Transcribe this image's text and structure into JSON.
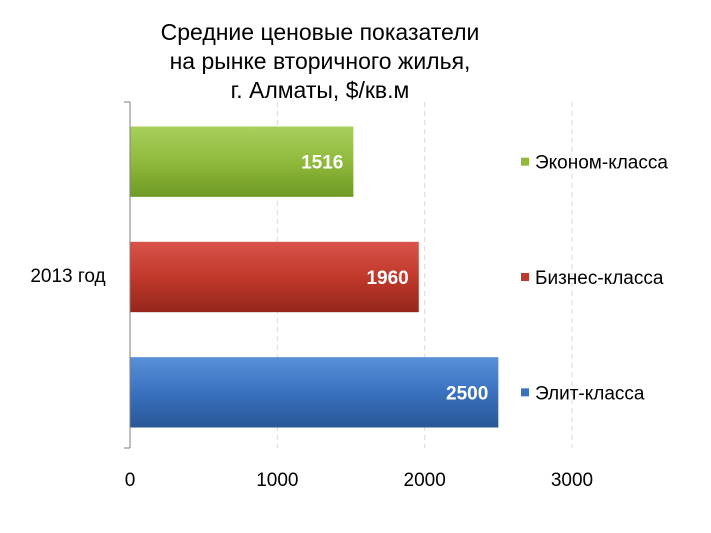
{
  "chart_data": {
    "type": "bar",
    "orientation": "horizontal",
    "title_lines": [
      "Средние ценовые показатели",
      "на рынке вторичного жилья,",
      "г. Алматы, $/кв.м"
    ],
    "categories": [
      "2013 год"
    ],
    "series": [
      {
        "name": "Эконом-класса",
        "values": [
          1516
        ],
        "color": "#8fba3c"
      },
      {
        "name": "Бизнес-класса",
        "values": [
          1960
        ],
        "color": "#c0392b"
      },
      {
        "name": "Элит-класса",
        "values": [
          2500
        ],
        "color": "#3a72c0"
      }
    ],
    "xlim": [
      0,
      3000
    ],
    "xticks": [
      0,
      1000,
      2000,
      3000
    ],
    "grid": true,
    "legend_position": "right"
  }
}
